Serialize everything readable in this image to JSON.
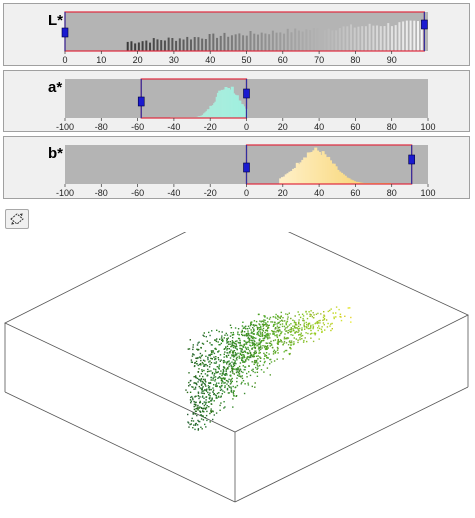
{
  "histograms": [
    {
      "id": "L",
      "label": "L*",
      "axis_min": 0,
      "axis_max": 100,
      "ticks": [
        0,
        10,
        20,
        30,
        40,
        50,
        60,
        70,
        80,
        90
      ],
      "selection": [
        0,
        99
      ],
      "data_range": [
        17,
        98
      ],
      "color_start": "#3a3a3a",
      "color_end": "#f4f4f4"
    },
    {
      "id": "a",
      "label": "a*",
      "axis_min": -100,
      "axis_max": 100,
      "ticks": [
        -100,
        -80,
        -60,
        -40,
        -20,
        0,
        20,
        40,
        60,
        80,
        100
      ],
      "selection": [
        -58,
        0
      ],
      "data_range": [
        -42,
        -1
      ],
      "color_start": "#b8e8d8",
      "color_end": "#9ff0e0"
    },
    {
      "id": "b",
      "label": "b*",
      "axis_min": -100,
      "axis_max": 100,
      "ticks": [
        -100,
        -80,
        -60,
        -40,
        -20,
        0,
        20,
        40,
        60,
        80,
        100
      ],
      "selection": [
        0,
        91
      ],
      "data_range": [
        18,
        78
      ],
      "color_start": "#fff0c8",
      "color_end": "#f6cf60"
    }
  ],
  "colors": {
    "plot_bg": "#b4b4b4",
    "selection_border": "#e0283c",
    "handle_fill": "#1a1ad0",
    "handle_line": "#3030a0",
    "box_line": "#555555",
    "panel_bg": "#f0f0f0"
  },
  "toolbar": {
    "rotate_icon": "rotate-3d-icon"
  }
}
